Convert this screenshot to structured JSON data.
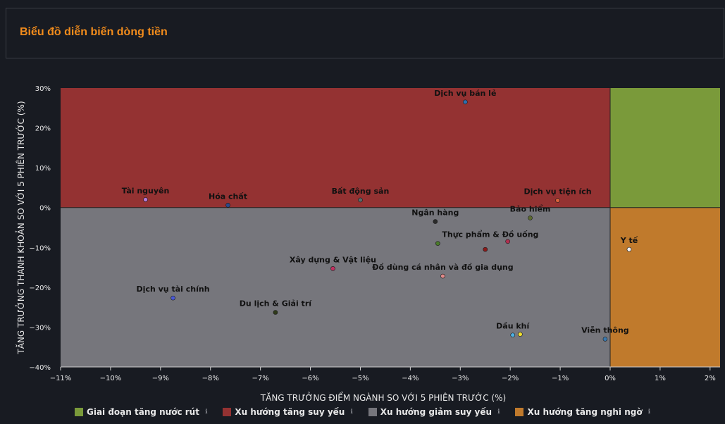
{
  "header": {
    "title": "Biểu đồ diễn biến dòng tiền"
  },
  "chart_data": {
    "type": "scatter",
    "xlabel": "TĂNG TRƯỞNG ĐIỂM NGÀNH SO VỚI 5 PHIÊN TRƯỚC (%)",
    "ylabel": "TĂNG TRƯỞNG THANH KHOẢN SO VỚI 5 PHIÊN TRƯỚC (%)",
    "xlim": [
      -11,
      2.2
    ],
    "ylim": [
      -40,
      30
    ],
    "xticks": [
      -11,
      -10,
      -9,
      -8,
      -7,
      -6,
      -5,
      -4,
      -3,
      -2,
      -1,
      0,
      1,
      2
    ],
    "yticks": [
      30,
      20,
      10,
      0,
      -10,
      -20,
      -30,
      -40
    ],
    "quadrants": [
      {
        "name": "Giai đoạn tăng nước rút",
        "color": "#7a9a3a"
      },
      {
        "name": "Xu hướng tăng suy yếu",
        "color": "#943232"
      },
      {
        "name": "Xu hướng giảm suy yếu",
        "color": "#76767c"
      },
      {
        "name": "Xu hướng tăng nghi ngờ",
        "color": "#c07a2c"
      }
    ],
    "points": [
      {
        "label": "Dịch vụ bán lẻ",
        "x": -2.9,
        "y": 26.5,
        "color": "#2f6fb0",
        "anchor": "middle"
      },
      {
        "label": "Tài nguyên",
        "x": -9.3,
        "y": 2.0,
        "color": "#b57ad8",
        "anchor": "middle"
      },
      {
        "label": "Hóa chất",
        "x": -7.65,
        "y": 0.6,
        "color": "#2c4a8a",
        "anchor": "middle"
      },
      {
        "label": "Bất động sản",
        "x": -5.0,
        "y": 1.9,
        "color": "#5a6a6a",
        "anchor": "middle"
      },
      {
        "label": "Dịch vụ tiện ích",
        "x": -1.05,
        "y": 1.8,
        "color": "#d9603a",
        "anchor": "middle"
      },
      {
        "label": "Ngân hàng",
        "x": -3.5,
        "y": -3.5,
        "color": "#2a2a2a",
        "anchor": "middle"
      },
      {
        "label": "Bảo hiểm",
        "x": -1.6,
        "y": -2.6,
        "color": "#5c6a30",
        "anchor": "middle"
      },
      {
        "label": "Thực phẩm & Đồ uống",
        "x": -3.45,
        "y": -9.0,
        "color": "#4a7a2a",
        "anchor": "start"
      },
      {
        "label": "",
        "x": -2.5,
        "y": -10.5,
        "color": "#8a1a1a",
        "anchor": "middle"
      },
      {
        "label": "",
        "x": -2.05,
        "y": -8.5,
        "color": "#b03050",
        "anchor": "middle"
      },
      {
        "label": "Y tế",
        "x": 0.38,
        "y": -10.5,
        "color": "#f2f2f2",
        "anchor": "middle"
      },
      {
        "label": "Xây dựng & Vật liệu",
        "x": -5.55,
        "y": -15.3,
        "color": "#c03060",
        "anchor": "middle"
      },
      {
        "label": "Đồ dùng cá nhân và đồ gia dụng",
        "x": -3.35,
        "y": -17.2,
        "color": "#e08a8a",
        "anchor": "middle"
      },
      {
        "label": "Dịch vụ tài chính",
        "x": -8.75,
        "y": -22.7,
        "color": "#4b5ad6",
        "anchor": "middle"
      },
      {
        "label": "Du lịch & Giải trí",
        "x": -6.7,
        "y": -26.3,
        "color": "#2f3a1a",
        "anchor": "middle"
      },
      {
        "label": "Dầu khí",
        "x": -1.95,
        "y": -32.0,
        "color": "#4fb0e0",
        "anchor": "middle"
      },
      {
        "label": "",
        "x": -1.8,
        "y": -31.8,
        "color": "#f0e030",
        "anchor": "middle"
      },
      {
        "label": "Viễn thông",
        "x": -0.1,
        "y": -33.0,
        "color": "#3a7ab0",
        "anchor": "middle"
      }
    ],
    "legend_position": "bottom",
    "legend_info_icon": "ℹ"
  }
}
